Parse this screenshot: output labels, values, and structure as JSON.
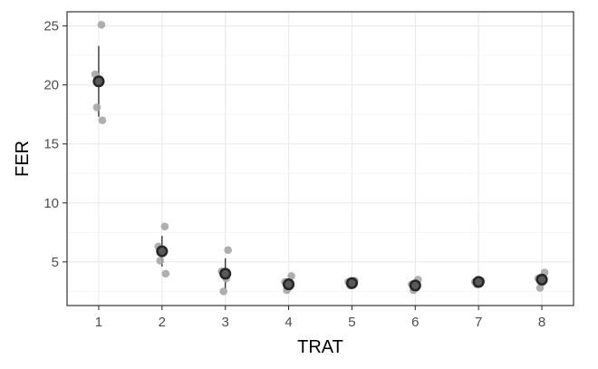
{
  "chart_data": {
    "type": "scatter",
    "title": "",
    "xlabel": "TRAT",
    "ylabel": "FER",
    "categories": [
      "1",
      "2",
      "3",
      "4",
      "5",
      "6",
      "7",
      "8"
    ],
    "yticks": [
      5,
      10,
      15,
      20,
      25
    ],
    "ylim": [
      1.3,
      26.2
    ],
    "grid": true,
    "legend": "none",
    "points": [
      {
        "x": "1",
        "y": 25.1
      },
      {
        "x": "1",
        "y": 20.9
      },
      {
        "x": "1",
        "y": 20.5
      },
      {
        "x": "1",
        "y": 18.1
      },
      {
        "x": "1",
        "y": 17.0
      },
      {
        "x": "2",
        "y": 8.0
      },
      {
        "x": "2",
        "y": 6.3
      },
      {
        "x": "2",
        "y": 5.9
      },
      {
        "x": "2",
        "y": 5.1
      },
      {
        "x": "2",
        "y": 4.0
      },
      {
        "x": "3",
        "y": 6.0
      },
      {
        "x": "3",
        "y": 4.2
      },
      {
        "x": "3",
        "y": 3.6
      },
      {
        "x": "3",
        "y": 2.5
      },
      {
        "x": "4",
        "y": 3.8
      },
      {
        "x": "4",
        "y": 3.3
      },
      {
        "x": "4",
        "y": 2.9
      },
      {
        "x": "4",
        "y": 2.6
      },
      {
        "x": "5",
        "y": 3.4
      },
      {
        "x": "5",
        "y": 3.3
      },
      {
        "x": "5",
        "y": 3.2
      },
      {
        "x": "5",
        "y": 3.0
      },
      {
        "x": "6",
        "y": 3.5
      },
      {
        "x": "6",
        "y": 3.1
      },
      {
        "x": "6",
        "y": 2.8
      },
      {
        "x": "6",
        "y": 2.6
      },
      {
        "x": "7",
        "y": 3.4
      },
      {
        "x": "7",
        "y": 3.3
      },
      {
        "x": "7",
        "y": 3.2
      },
      {
        "x": "7",
        "y": 3.1
      },
      {
        "x": "8",
        "y": 4.1
      },
      {
        "x": "8",
        "y": 3.6
      },
      {
        "x": "8",
        "y": 3.3
      },
      {
        "x": "8",
        "y": 2.8
      }
    ],
    "means": [
      {
        "x": "1",
        "mean": 20.3,
        "lower": 17.3,
        "upper": 23.3
      },
      {
        "x": "2",
        "mean": 5.9,
        "lower": 4.6,
        "upper": 7.2
      },
      {
        "x": "3",
        "mean": 4.0,
        "lower": 2.7,
        "upper": 5.3
      },
      {
        "x": "4",
        "mean": 3.1,
        "lower": 2.7,
        "upper": 3.5
      },
      {
        "x": "5",
        "mean": 3.2,
        "lower": 3.0,
        "upper": 3.4
      },
      {
        "x": "6",
        "mean": 3.0,
        "lower": 2.6,
        "upper": 3.4
      },
      {
        "x": "7",
        "mean": 3.3,
        "lower": 3.15,
        "upper": 3.45
      },
      {
        "x": "8",
        "mean": 3.5,
        "lower": 3.0,
        "upper": 4.0
      }
    ],
    "colors": {
      "points": "#a6a6a6",
      "mean_fill": "#595959",
      "mean_stroke": "#262626",
      "errorbar": "#262626",
      "grid_major": "#ebebeb",
      "grid_minor": "#f5f5f5",
      "panel_border": "#333333"
    }
  }
}
